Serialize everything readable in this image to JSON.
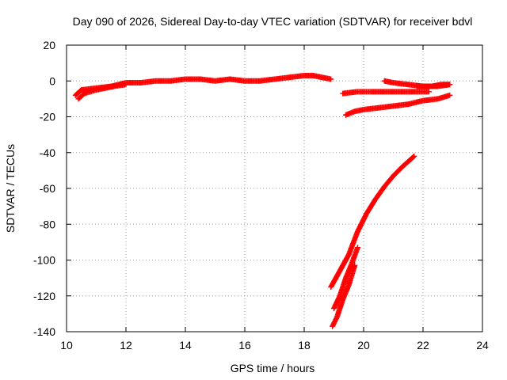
{
  "chart_data": {
    "type": "scatter",
    "title": "Day 090 of 2026, Sidereal Day-to-day VTEC variation (SDTVAR) for receiver bdvl",
    "xlabel": "GPS time / hours",
    "ylabel": "SDTVAR / TECUs",
    "xlim": [
      10,
      24
    ],
    "ylim": [
      -140,
      20
    ],
    "xticks": [
      10,
      12,
      14,
      16,
      18,
      20,
      22,
      24
    ],
    "yticks": [
      -140,
      -120,
      -100,
      -80,
      -60,
      -40,
      -20,
      0,
      20
    ],
    "grid": true,
    "legend": "none",
    "marker_color": "#ff0000",
    "series": [
      {
        "x": [
          10.3,
          10.5,
          11.0,
          11.5,
          12.0,
          12.5,
          13.0,
          13.5,
          14.0,
          14.5,
          15.0,
          15.5,
          16.0,
          16.5,
          17.0,
          17.5,
          18.0,
          18.3,
          18.6,
          18.9
        ],
        "y": [
          -8,
          -5,
          -4,
          -3,
          -1,
          -1,
          0,
          0,
          1,
          1,
          0,
          1,
          0,
          0,
          1,
          2,
          3,
          3,
          2,
          1
        ]
      },
      {
        "x": [
          10.4,
          10.6,
          10.8,
          11.0,
          11.3,
          11.6,
          12.0
        ],
        "y": [
          -10,
          -7,
          -6,
          -5,
          -4,
          -3,
          -2
        ]
      },
      {
        "x": [
          19.3,
          19.8,
          20.3,
          20.8,
          21.3,
          21.8,
          22.2
        ],
        "y": [
          -7,
          -6,
          -6,
          -6,
          -6,
          -6,
          -6
        ]
      },
      {
        "x": [
          20.7,
          21.0,
          21.5,
          22.0,
          22.5,
          22.9
        ],
        "y": [
          0,
          -1,
          -2,
          -3,
          -3,
          -2
        ]
      },
      {
        "x": [
          21.8,
          22.0,
          22.3,
          22.6,
          22.9
        ],
        "y": [
          -3,
          -3,
          -3,
          -2,
          -2
        ]
      },
      {
        "x": [
          19.4,
          19.7,
          20.0,
          20.5,
          21.0,
          21.5,
          22.0,
          22.5,
          22.9
        ],
        "y": [
          -19,
          -17,
          -16,
          -15,
          -14,
          -13,
          -11,
          -10,
          -8
        ]
      },
      {
        "x": [
          18.9,
          19.2,
          19.5,
          19.8,
          20.1,
          20.4,
          20.7,
          21.0,
          21.3,
          21.7
        ],
        "y": [
          -115,
          -106,
          -97,
          -84,
          -74,
          -66,
          -59,
          -53,
          -48,
          -42
        ]
      },
      {
        "x": [
          19.0,
          19.2,
          19.4,
          19.6,
          19.8
        ],
        "y": [
          -127,
          -120,
          -110,
          -102,
          -93
        ]
      },
      {
        "x": [
          18.95,
          19.1,
          19.3,
          19.5,
          19.7
        ],
        "y": [
          -137,
          -132,
          -122,
          -114,
          -103
        ]
      }
    ]
  }
}
